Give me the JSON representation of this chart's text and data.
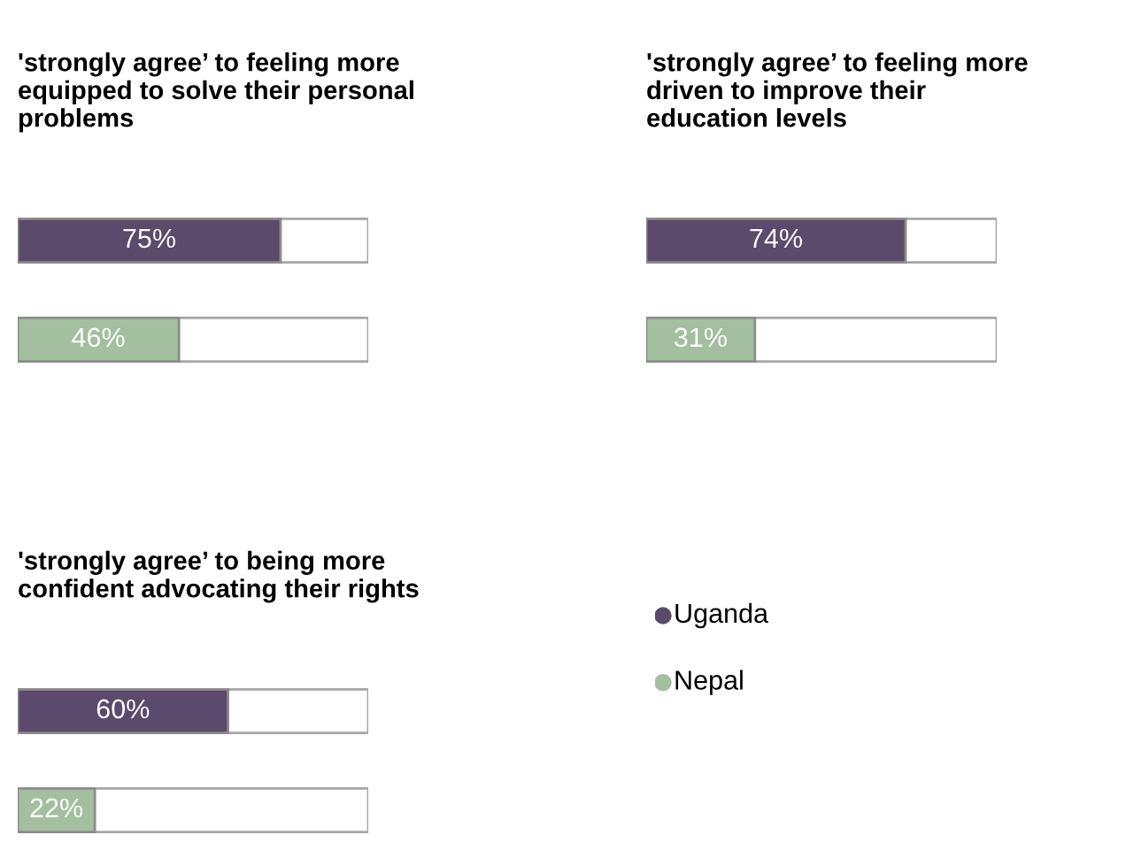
{
  "chart_data": [
    {
      "type": "bar",
      "orientation": "horizontal",
      "title": "'strongly agree’ to feeling more\nequipped to solve their personal\nproblems",
      "categories": [
        null,
        null
      ],
      "xlim": [
        0,
        100
      ],
      "values": [
        75,
        46
      ],
      "colors": [
        "#5b4a6b",
        "#a3bf9f"
      ],
      "value_labels": [
        "75%",
        "46%"
      ]
    },
    {
      "type": "bar",
      "orientation": "horizontal",
      "title": "'strongly agree’ to feeling more\ndriven to improve their\neducation levels",
      "categories": [
        null,
        null
      ],
      "xlim": [
        0,
        100
      ],
      "values": [
        74,
        31
      ],
      "colors": [
        "#5b4a6b",
        "#a3bf9f"
      ],
      "value_labels": [
        "74%",
        "31%"
      ]
    },
    {
      "type": "bar",
      "orientation": "horizontal",
      "title": "'strongly agree’ to being more\nconfident advocating their rights",
      "categories": [
        null,
        null
      ],
      "xlim": [
        0,
        100
      ],
      "values": [
        60,
        22
      ],
      "colors": [
        "#5b4a6b",
        "#a3bf9f"
      ],
      "value_labels": [
        "60%",
        "22%"
      ]
    },
    {
      "type": "other",
      "annotations": [
        "Uganda",
        "Nepal"
      ]
    }
  ]
}
